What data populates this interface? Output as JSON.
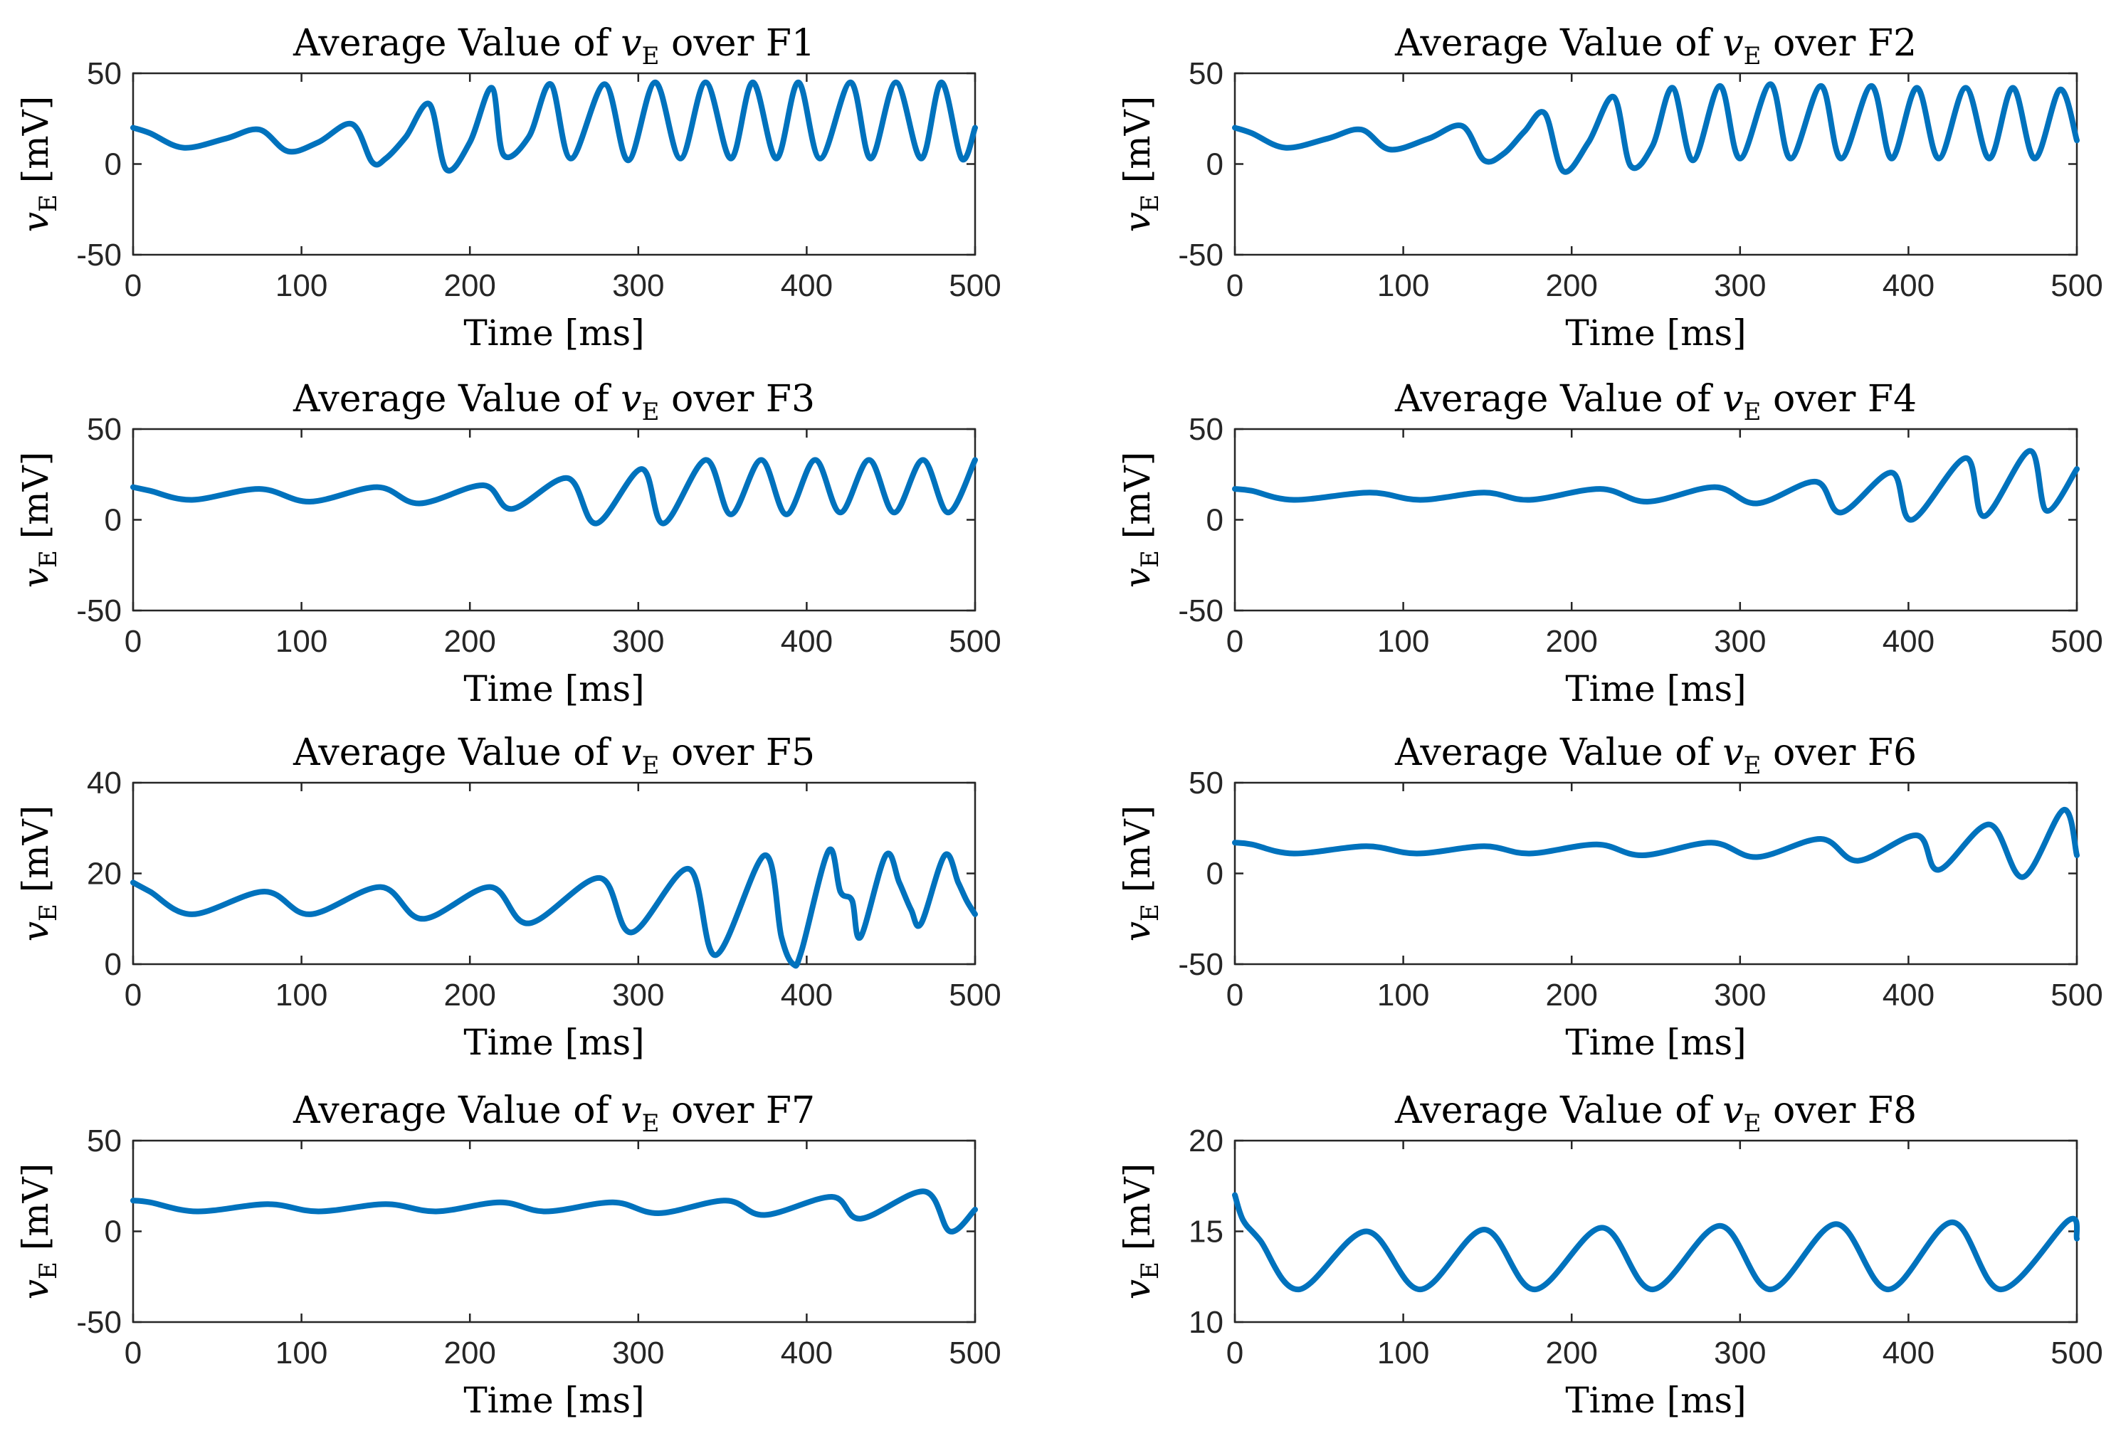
{
  "figure": {
    "background": "#ffffff",
    "line_color": "#0072BD"
  },
  "chart_data": [
    {
      "type": "line",
      "title": {
        "prefix": "Average Value of ",
        "var": "v",
        "sub": "E",
        "suffix": " over F1"
      },
      "xlabel": "Time [ms]",
      "ylabel": {
        "var": "v",
        "sub": "E",
        "unit": " [mV]"
      },
      "xlim": [
        0,
        500
      ],
      "ylim": [
        -50,
        50
      ],
      "xticks": [
        0,
        100,
        200,
        300,
        400,
        500
      ],
      "yticks": [
        -50,
        0,
        50
      ],
      "series": [
        {
          "color": "#0072BD",
          "x": [
            0,
            10,
            30,
            55,
            75,
            92,
            110,
            130,
            142,
            150,
            162,
            176,
            186,
            200,
            213,
            220,
            235,
            248,
            260,
            280,
            294,
            310,
            325,
            340,
            355,
            368,
            382,
            395,
            408,
            426,
            438,
            453,
            468,
            480,
            492,
            500
          ],
          "y": [
            20,
            17,
            9,
            14,
            19,
            7,
            12,
            22,
            1,
            3,
            15,
            33,
            -3,
            12,
            42,
            5,
            15,
            44,
            3,
            44,
            2,
            45,
            3,
            45,
            3,
            45,
            3,
            45,
            3,
            45,
            3,
            45,
            3,
            45,
            3,
            20
          ]
        }
      ]
    },
    {
      "type": "line",
      "title": {
        "prefix": "Average Value of ",
        "var": "v",
        "sub": "E",
        "suffix": " over F2"
      },
      "xlabel": "Time [ms]",
      "ylabel": {
        "var": "v",
        "sub": "E",
        "unit": " [mV]"
      },
      "xlim": [
        0,
        500
      ],
      "ylim": [
        -50,
        50
      ],
      "xticks": [
        0,
        100,
        200,
        300,
        400,
        500
      ],
      "yticks": [
        -50,
        0,
        50
      ],
      "series": [
        {
          "color": "#0072BD",
          "x": [
            0,
            10,
            30,
            55,
            75,
            92,
            115,
            135,
            148,
            160,
            172,
            184,
            195,
            210,
            225,
            235,
            248,
            260,
            272,
            288,
            300,
            318,
            330,
            348,
            360,
            378,
            390,
            405,
            418,
            434,
            448,
            462,
            475,
            490,
            500
          ],
          "y": [
            20,
            17,
            9,
            14,
            19,
            8,
            14,
            21,
            2,
            6,
            18,
            28,
            -4,
            12,
            37,
            -1,
            10,
            42,
            2,
            43,
            3,
            44,
            3,
            43,
            3,
            43,
            3,
            42,
            3,
            42,
            3,
            42,
            3,
            41,
            13
          ]
        }
      ]
    },
    {
      "type": "line",
      "title": {
        "prefix": "Average Value of ",
        "var": "v",
        "sub": "E",
        "suffix": " over F3"
      },
      "xlabel": "Time [ms]",
      "ylabel": {
        "var": "v",
        "sub": "E",
        "unit": " [mV]"
      },
      "xlim": [
        0,
        500
      ],
      "ylim": [
        -50,
        50
      ],
      "xticks": [
        0,
        100,
        200,
        300,
        400,
        500
      ],
      "yticks": [
        -50,
        0,
        50
      ],
      "series": [
        {
          "color": "#0072BD",
          "x": [
            0,
            10,
            35,
            75,
            105,
            145,
            170,
            208,
            225,
            258,
            275,
            302,
            315,
            340,
            355,
            373,
            388,
            405,
            420,
            437,
            452,
            469,
            484,
            500
          ],
          "y": [
            18,
            16,
            11,
            17,
            10,
            18,
            9,
            19,
            6,
            23,
            -2,
            28,
            -2,
            33,
            3,
            33,
            3,
            33,
            4,
            33,
            4,
            33,
            4,
            33
          ]
        }
      ]
    },
    {
      "type": "line",
      "title": {
        "prefix": "Average Value of ",
        "var": "v",
        "sub": "E",
        "suffix": " over F4"
      },
      "xlabel": "Time [ms]",
      "ylabel": {
        "var": "v",
        "sub": "E",
        "unit": " [mV]"
      },
      "xlim": [
        0,
        500
      ],
      "ylim": [
        -50,
        50
      ],
      "xticks": [
        0,
        100,
        200,
        300,
        400,
        500
      ],
      "yticks": [
        -50,
        0,
        50
      ],
      "series": [
        {
          "color": "#0072BD",
          "x": [
            0,
            10,
            35,
            80,
            110,
            148,
            175,
            217,
            245,
            285,
            310,
            345,
            360,
            390,
            402,
            434,
            445,
            472,
            482,
            500
          ],
          "y": [
            17,
            16,
            11,
            15,
            11,
            15,
            11,
            17,
            10,
            18,
            9,
            21,
            4,
            26,
            0,
            34,
            2,
            38,
            5,
            28
          ]
        }
      ]
    },
    {
      "type": "line",
      "title": {
        "prefix": "Average Value of ",
        "var": "v",
        "sub": "E",
        "suffix": " over F5"
      },
      "xlabel": "Time [ms]",
      "ylabel": {
        "var": "v",
        "sub": "E",
        "unit": " [mV]"
      },
      "xlim": [
        0,
        500
      ],
      "ylim": [
        0,
        40
      ],
      "xticks": [
        0,
        100,
        200,
        300,
        400,
        500
      ],
      "yticks": [
        0,
        20,
        40
      ],
      "series": [
        {
          "color": "#0072BD",
          "x": [
            0,
            10,
            35,
            78,
            105,
            147,
            172,
            212,
            235,
            277,
            296,
            330,
            346,
            375,
            385,
            392,
            397,
            413,
            420,
            427,
            432,
            447,
            455,
            462,
            468,
            482,
            490,
            495,
            500
          ],
          "y": [
            18,
            16,
            11,
            16,
            11,
            17,
            10,
            17,
            9,
            19,
            7,
            21,
            2,
            24,
            6,
            0,
            3,
            25,
            16,
            14,
            6,
            24,
            18,
            12,
            9,
            24,
            18,
            14,
            11
          ]
        }
      ]
    },
    {
      "type": "line",
      "title": {
        "prefix": "Average Value of ",
        "var": "v",
        "sub": "E",
        "suffix": " over F6"
      },
      "xlabel": "Time [ms]",
      "ylabel": {
        "var": "v",
        "sub": "E",
        "unit": " [mV]"
      },
      "xlim": [
        0,
        500
      ],
      "ylim": [
        -50,
        50
      ],
      "xticks": [
        0,
        100,
        200,
        300,
        400,
        500
      ],
      "yticks": [
        -50,
        0,
        50
      ],
      "series": [
        {
          "color": "#0072BD",
          "x": [
            0,
            10,
            35,
            78,
            108,
            148,
            175,
            215,
            242,
            283,
            310,
            348,
            370,
            405,
            418,
            448,
            468,
            492,
            500
          ],
          "y": [
            17,
            16,
            11,
            15,
            11,
            15,
            11,
            16,
            10,
            17,
            9,
            19,
            7,
            21,
            2,
            27,
            -2,
            35,
            10
          ]
        }
      ]
    },
    {
      "type": "line",
      "title": {
        "prefix": "Average Value of ",
        "var": "v",
        "sub": "E",
        "suffix": " over F7"
      },
      "xlabel": "Time [ms]",
      "ylabel": {
        "var": "v",
        "sub": "E",
        "unit": " [mV]"
      },
      "xlim": [
        0,
        500
      ],
      "ylim": [
        -50,
        50
      ],
      "xticks": [
        0,
        100,
        200,
        300,
        400,
        500
      ],
      "yticks": [
        -50,
        0,
        50
      ],
      "series": [
        {
          "color": "#0072BD",
          "x": [
            0,
            10,
            38,
            80,
            110,
            150,
            180,
            218,
            245,
            285,
            312,
            352,
            375,
            415,
            432,
            470,
            485,
            500
          ],
          "y": [
            17,
            16,
            11,
            15,
            11,
            15,
            11,
            16,
            11,
            16,
            10,
            17,
            9,
            19,
            7,
            22,
            0,
            12
          ]
        }
      ]
    },
    {
      "type": "line",
      "title": {
        "prefix": "Average Value of ",
        "var": "v",
        "sub": "E",
        "suffix": " over F8"
      },
      "xlabel": "Time [ms]",
      "ylabel": {
        "var": "v",
        "sub": "E",
        "unit": " [mV]"
      },
      "xlim": [
        0,
        500
      ],
      "ylim": [
        10,
        20
      ],
      "xticks": [
        0,
        100,
        200,
        300,
        400,
        500
      ],
      "yticks": [
        10,
        15,
        20
      ],
      "series": [
        {
          "color": "#0072BD",
          "x": [
            0,
            5,
            15,
            38,
            78,
            110,
            148,
            178,
            218,
            248,
            288,
            318,
            357,
            388,
            426,
            455,
            495,
            500
          ],
          "y": [
            17,
            15.6,
            14.5,
            11.8,
            15,
            11.8,
            15.1,
            11.8,
            15.2,
            11.8,
            15.3,
            11.8,
            15.4,
            11.8,
            15.5,
            11.8,
            15.6,
            14.6
          ]
        }
      ]
    }
  ]
}
